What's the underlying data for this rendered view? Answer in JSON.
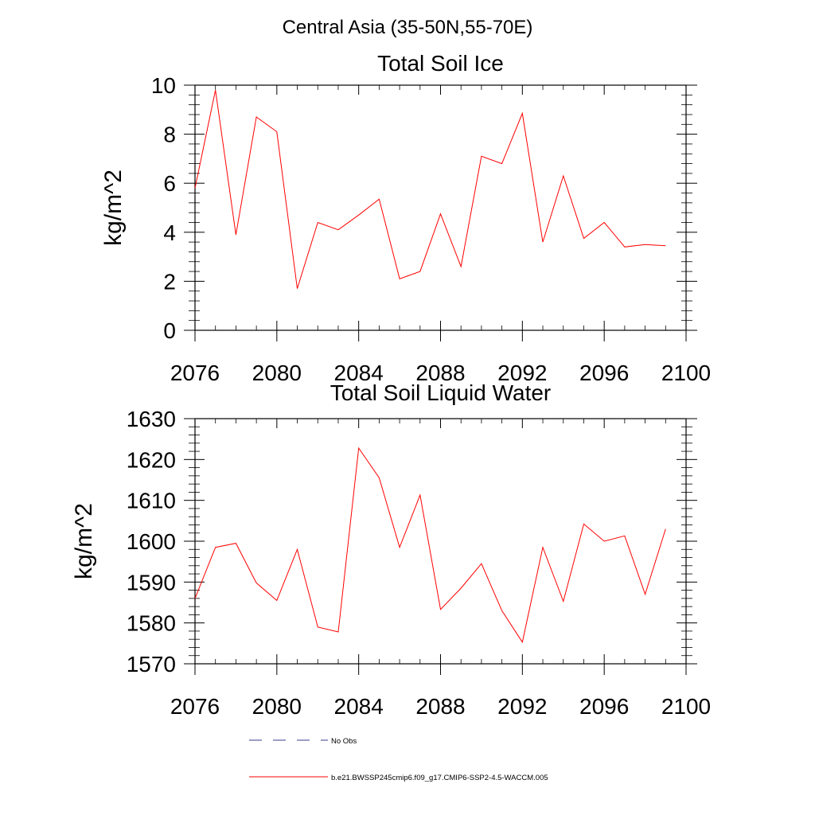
{
  "title": "Central Asia (35-50N,55-70E)",
  "colors": {
    "series": "#ff0000",
    "axis": "#000000",
    "obs": "#3b3b8f"
  },
  "chart_data": [
    {
      "type": "line",
      "title": "Total Soil Ice",
      "xlabel": "",
      "ylabel": "kg/m^2",
      "xlim": [
        2076,
        2100
      ],
      "ylim": [
        0,
        10
      ],
      "xticks": [
        2076,
        2080,
        2084,
        2088,
        2092,
        2096,
        2100
      ],
      "yticks": [
        0,
        2,
        4,
        6,
        8,
        10
      ],
      "grid": false,
      "series": [
        {
          "name": "b.e21.BWSSP245cmip6.f09_g17.CMIP6-SSP2-4.5-WACCM.005",
          "x": [
            2076,
            2077,
            2078,
            2079,
            2080,
            2081,
            2082,
            2083,
            2084,
            2085,
            2086,
            2087,
            2088,
            2089,
            2090,
            2091,
            2092,
            2093,
            2094,
            2095,
            2096,
            2097,
            2098,
            2099
          ],
          "values": [
            5.8,
            9.8,
            3.9,
            8.7,
            8.1,
            1.7,
            4.4,
            4.1,
            4.7,
            5.35,
            2.1,
            2.4,
            4.75,
            2.6,
            7.1,
            6.8,
            8.85,
            3.6,
            6.3,
            3.75,
            4.4,
            3.4,
            3.5,
            3.45
          ]
        }
      ]
    },
    {
      "type": "line",
      "title": "Total Soil Liquid Water",
      "xlabel": "",
      "ylabel": "kg/m^2",
      "xlim": [
        2076,
        2100
      ],
      "ylim": [
        1570,
        1630
      ],
      "xticks": [
        2076,
        2080,
        2084,
        2088,
        2092,
        2096,
        2100
      ],
      "yticks": [
        1570,
        1580,
        1590,
        1600,
        1610,
        1620,
        1630
      ],
      "grid": false,
      "series": [
        {
          "name": "b.e21.BWSSP245cmip6.f09_g17.CMIP6-SSP2-4.5-WACCM.005",
          "x": [
            2076,
            2077,
            2078,
            2079,
            2080,
            2081,
            2082,
            2083,
            2084,
            2085,
            2086,
            2087,
            2088,
            2089,
            2090,
            2091,
            2092,
            2093,
            2094,
            2095,
            2096,
            2097,
            2098,
            2099
          ],
          "values": [
            1586,
            1598.5,
            1599.5,
            1589.8,
            1585.5,
            1598,
            1579,
            1577.8,
            1622.8,
            1615.5,
            1598.5,
            1611.3,
            1583.3,
            1588.5,
            1594.5,
            1583,
            1575.3,
            1598.5,
            1585.3,
            1604.2,
            1600,
            1601.3,
            1587,
            1603
          ]
        }
      ]
    }
  ],
  "legend": [
    {
      "label": "No Obs",
      "style": "dashed",
      "color": "#3b3b8f"
    },
    {
      "label": "b.e21.BWSSP245cmip6.f09_g17.CMIP6-SSP2-4.5-WACCM.005",
      "style": "solid",
      "color": "#ff0000"
    }
  ]
}
